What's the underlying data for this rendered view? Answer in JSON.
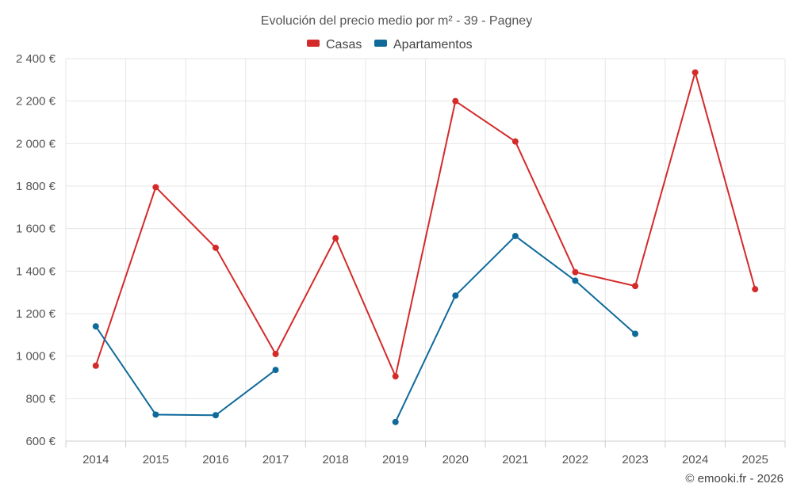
{
  "chart_data": {
    "type": "line",
    "title": "Evolución del precio medio por m² - 39 - Pagney",
    "categories": [
      "2014",
      "2015",
      "2016",
      "2017",
      "2018",
      "2019",
      "2020",
      "2021",
      "2022",
      "2023",
      "2024",
      "2025"
    ],
    "y_ticks": [
      600,
      800,
      1000,
      1200,
      1400,
      1600,
      1800,
      2000,
      2200,
      2400
    ],
    "y_tick_labels": [
      "600 €",
      "800 €",
      "1 000 €",
      "1 200 €",
      "1 400 €",
      "1 600 €",
      "1 800 €",
      "2 000 €",
      "2 200 €",
      "2 400 €"
    ],
    "ylim": [
      600,
      2400
    ],
    "grid": true,
    "legend_position": "top-center",
    "series": [
      {
        "name": "Casas",
        "color": "#d42a2a",
        "values": [
          955,
          1795,
          1510,
          1010,
          1555,
          905,
          2200,
          2010,
          1395,
          1330,
          2335,
          1315
        ]
      },
      {
        "name": "Apartamentos",
        "color": "#0f6a9b",
        "values": [
          1140,
          725,
          722,
          935,
          null,
          690,
          1285,
          1565,
          1355,
          1105,
          null,
          null
        ]
      }
    ],
    "credit": "© emooki.fr - 2026"
  }
}
